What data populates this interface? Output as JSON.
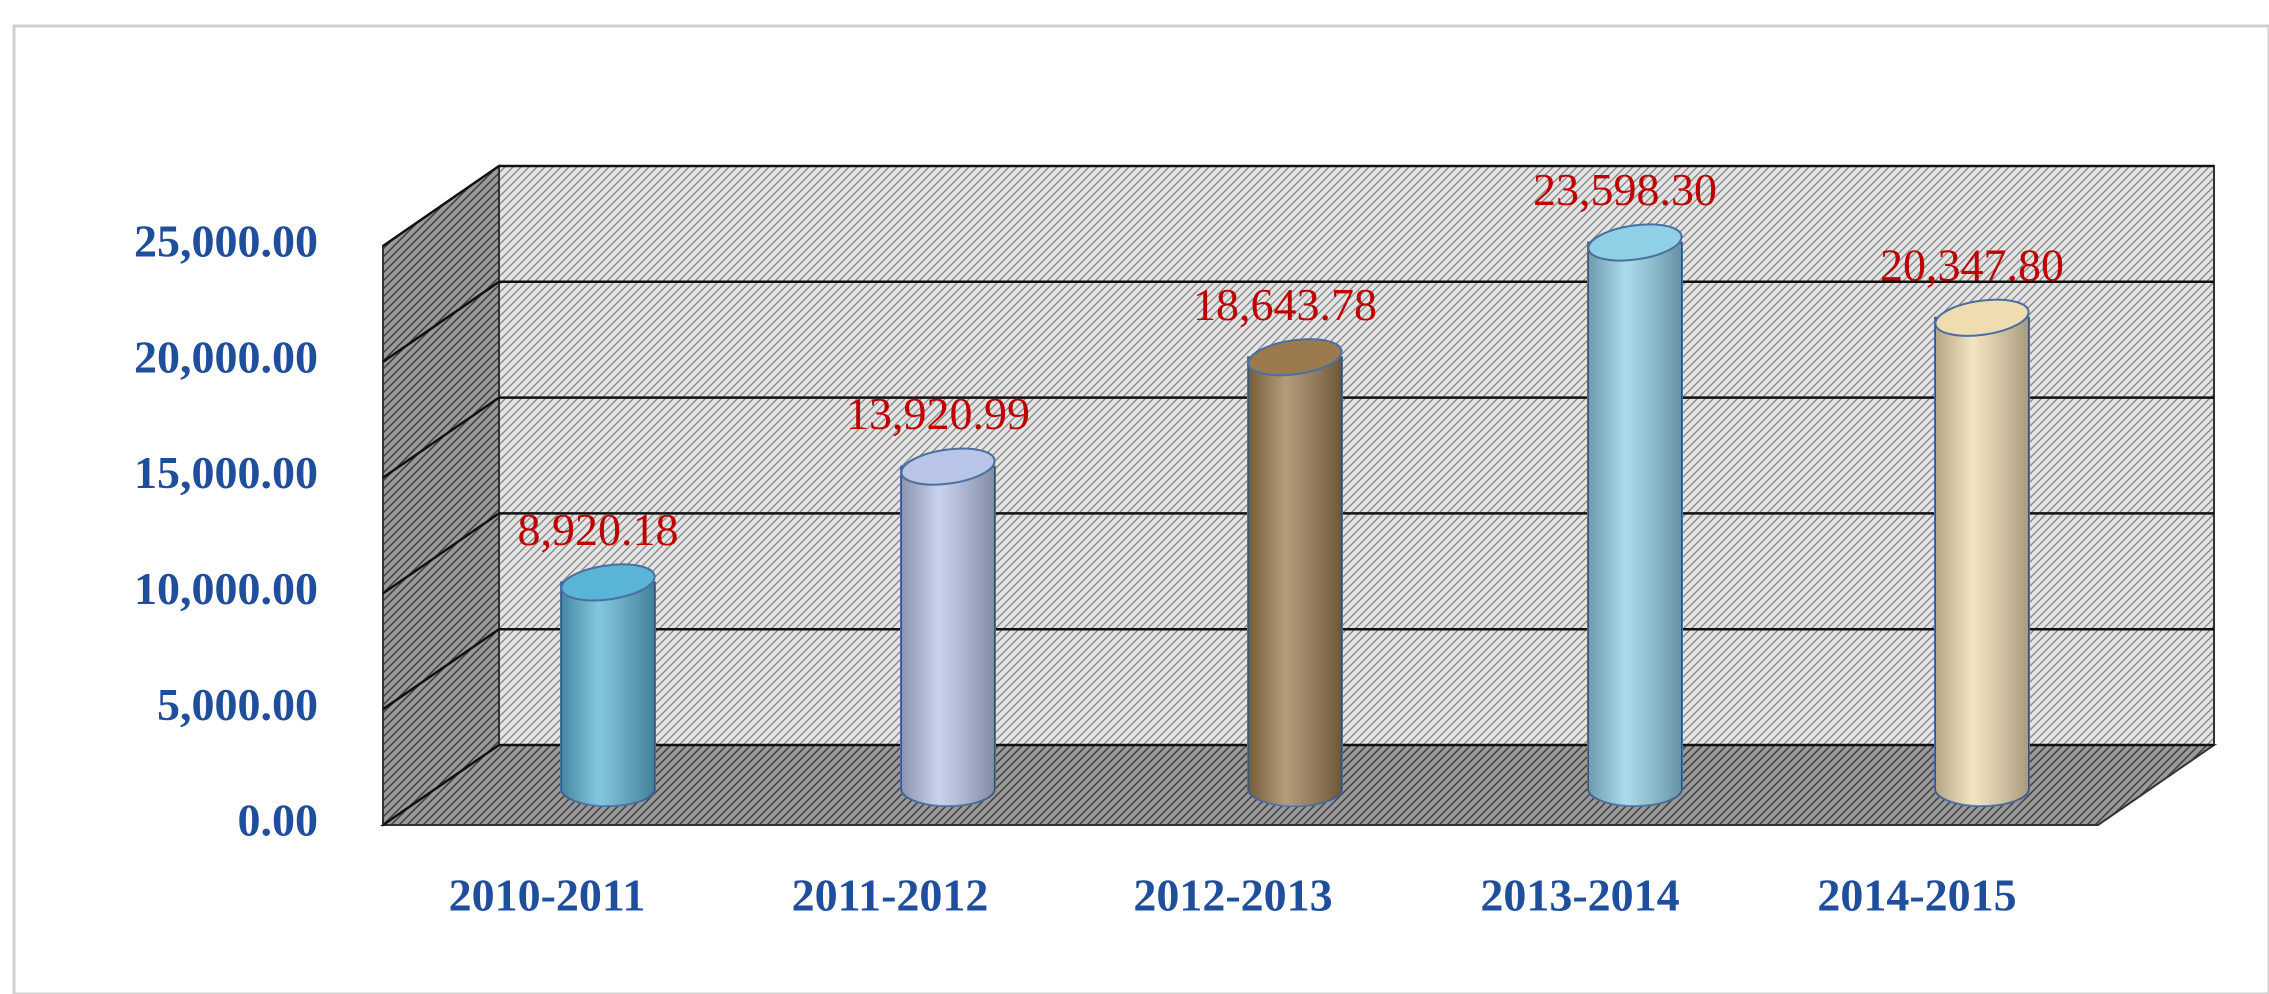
{
  "chart_data": {
    "type": "bar3d-cylinder",
    "categories": [
      "2010-2011",
      "2011-2012",
      "2012-2013",
      "2013-2014",
      "2014-2015"
    ],
    "values": [
      8920.18,
      13920.99,
      18643.78,
      23598.3,
      20347.8
    ],
    "value_labels": [
      "8,920.18",
      "13,920.99",
      "18,643.78",
      "23,598.30",
      "20,347.80"
    ],
    "colors": [
      "#5ab4d6",
      "#b8c4e8",
      "#9b7a4e",
      "#8fd0e6",
      "#efdcb0"
    ],
    "ylim": [
      0,
      25000
    ],
    "yticks": [
      {
        "value": 0,
        "label": "0.00"
      },
      {
        "value": 5000,
        "label": "5,000.00"
      },
      {
        "value": 10000,
        "label": "10,000.00"
      },
      {
        "value": 15000,
        "label": "15,000.00"
      },
      {
        "value": 20000,
        "label": "20,000.00"
      },
      {
        "value": 25000,
        "label": "25,000.00"
      }
    ],
    "grid": true
  }
}
